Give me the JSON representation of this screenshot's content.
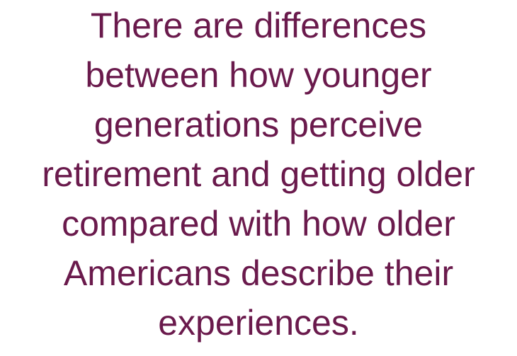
{
  "text": {
    "lines": [
      "There are differences",
      "between how younger",
      "generations perceive",
      "retirement and getting older",
      "compared with how older",
      "Americans describe their",
      "experiences."
    ]
  }
}
